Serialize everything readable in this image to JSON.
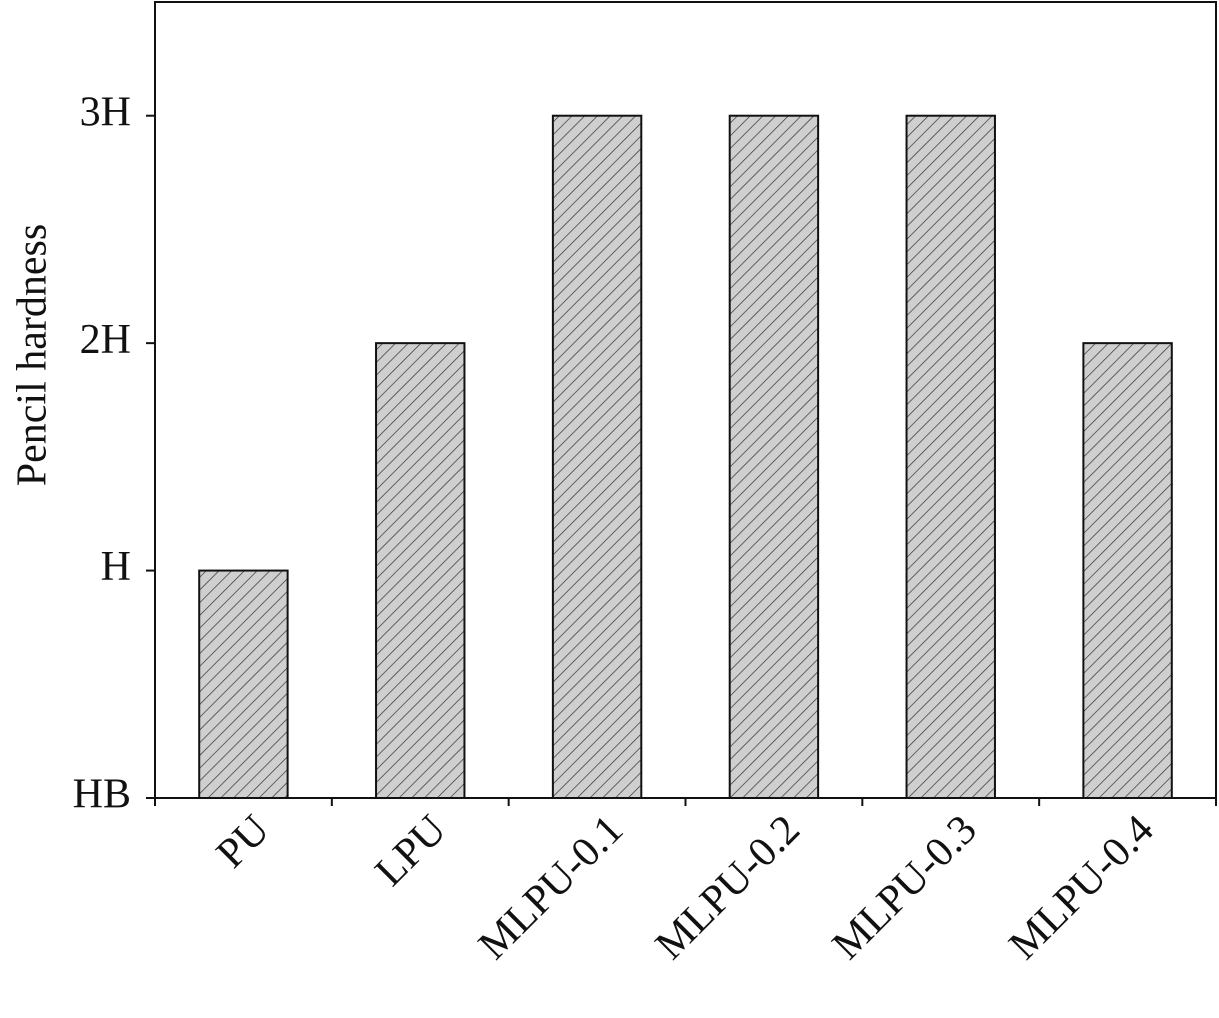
{
  "chart_data": {
    "type": "bar",
    "y_label": "Pencil hardness",
    "categories": [
      "PU",
      "LPU",
      "MLPU-0.1",
      "MLPU-0.2",
      "MLPU-0.3",
      "MLPU-0.4"
    ],
    "values": [
      1,
      2,
      3,
      3,
      3,
      2
    ],
    "color": "#cfcfcf",
    "ylim": [
      0,
      3.5
    ],
    "yticks": [
      {
        "value": 0,
        "label": "HB"
      },
      {
        "value": 1,
        "label": "H"
      },
      {
        "value": 2,
        "label": "2H"
      },
      {
        "value": 3,
        "label": "3H"
      }
    ],
    "grid": false
  }
}
